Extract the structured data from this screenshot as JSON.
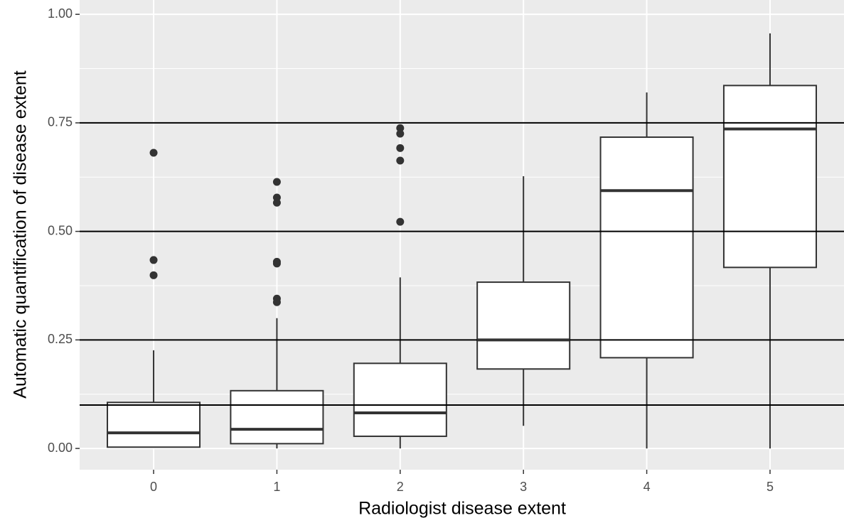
{
  "chart_data": {
    "type": "boxplot",
    "x_label": "Radiologist disease extent",
    "y_label": "Automatic quantification of disease extent",
    "categories": [
      "0",
      "1",
      "2",
      "3",
      "4",
      "5"
    ],
    "boxes": [
      {
        "whisker_low": 0.003,
        "q1": 0.003,
        "median": 0.036,
        "q3": 0.106,
        "whisker_high": 0.226,
        "outliers": [
          0.681,
          0.434,
          0.399
        ]
      },
      {
        "whisker_low": 0.0,
        "q1": 0.011,
        "median": 0.044,
        "q3": 0.133,
        "whisker_high": 0.3,
        "outliers": [
          0.614,
          0.578,
          0.566,
          0.43,
          0.426,
          0.345,
          0.337
        ]
      },
      {
        "whisker_low": 0.0,
        "q1": 0.028,
        "median": 0.082,
        "q3": 0.196,
        "whisker_high": 0.394,
        "outliers": [
          0.738,
          0.725,
          0.692,
          0.663,
          0.522
        ]
      },
      {
        "whisker_low": 0.052,
        "q1": 0.183,
        "median": 0.25,
        "q3": 0.383,
        "whisker_high": 0.627,
        "outliers": []
      },
      {
        "whisker_low": 0.0,
        "q1": 0.209,
        "median": 0.594,
        "q3": 0.717,
        "whisker_high": 0.82,
        "outliers": []
      },
      {
        "whisker_low": 0.0,
        "q1": 0.417,
        "median": 0.736,
        "q3": 0.836,
        "whisker_high": 0.956,
        "outliers": []
      }
    ],
    "reference_lines": [
      0.1,
      0.25,
      0.5,
      0.75
    ],
    "ylim": [
      -0.049,
      1.033
    ],
    "yticks": [
      {
        "value": 0,
        "label": "0.00"
      },
      {
        "value": 0.25,
        "label": "0.25"
      },
      {
        "value": 0.5,
        "label": "0.50"
      },
      {
        "value": 0.75,
        "label": "0.75"
      },
      {
        "value": 1,
        "label": "1.00"
      }
    ],
    "grid": true,
    "box_fill": "#ffffff",
    "line_color": "#333333",
    "panel_color": "#ebebeb"
  }
}
